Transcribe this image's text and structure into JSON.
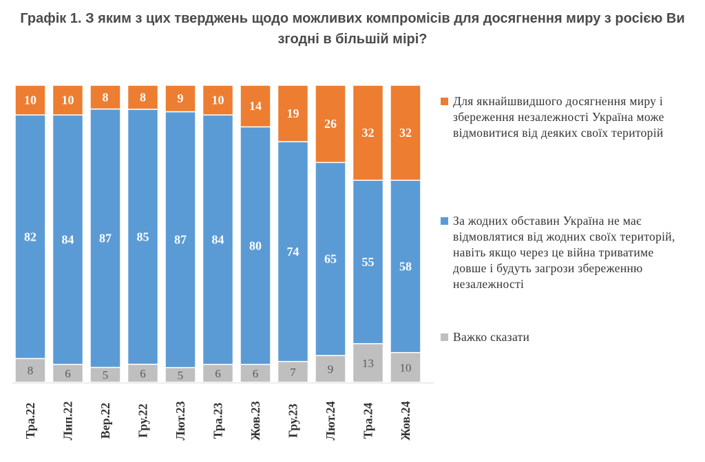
{
  "title": "Графік 1. З яким з цих тверджень щодо можливих компромісів для досягнення миру з росією Ви згодні в більшій мірі?",
  "chart_data": {
    "type": "bar",
    "stacked": true,
    "percent_stacked": true,
    "categories": [
      "Тра.22",
      "Лип.22",
      "Вер.22",
      "Гру.22",
      "Лют.23",
      "Тра.23",
      "Жов.23",
      "Гру.23",
      "Лют.24",
      "Тра.24",
      "Жов.24"
    ],
    "series": [
      {
        "name": "Важко сказати",
        "color": "#bfbfbf",
        "values": [
          8,
          6,
          5,
          6,
          5,
          6,
          6,
          7,
          9,
          13,
          10
        ]
      },
      {
        "name": "За жодних обставин Україна не має відмовлятися від жодних своїх територій, навіть якщо через це війна триватиме довше і будуть загрози збереженню незалежності",
        "color": "#5b9bd5",
        "values": [
          82,
          84,
          87,
          85,
          87,
          84,
          80,
          74,
          65,
          55,
          58
        ]
      },
      {
        "name": "Для якнайшвидшого досягнення миру і збереження незалежності Україна може відмовитися від деяких своїх територій",
        "color": "#ed7d31",
        "values": [
          10,
          10,
          8,
          8,
          9,
          10,
          14,
          19,
          26,
          32,
          32
        ]
      }
    ],
    "data_labels": true,
    "legend_position": "right",
    "grid": false
  },
  "legend": [
    {
      "label": "Для якнайшвидшого досягнення миру і збереження незалежності Україна може відмовитися від деяких своїх територій",
      "color": "#ed7d31"
    },
    {
      "label": "За жодних обставин Україна не має відмовлятися від жодних своїх територій, навіть якщо через це війна триватиме довше і будуть загрози збереженню незалежності",
      "color": "#5b9bd5"
    },
    {
      "label": "Важко сказати",
      "color": "#bfbfbf"
    }
  ]
}
